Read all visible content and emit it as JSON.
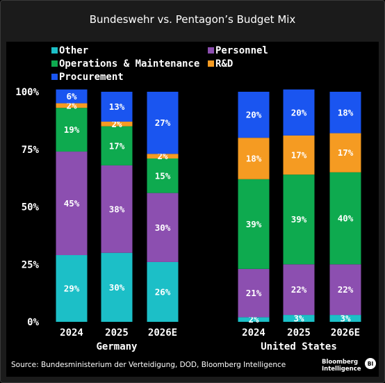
{
  "title": "Bundeswehr vs. Pentagon’s Budget Mix",
  "source": "Source: Bundesministerium der Verteidigung, DOD, Bloomberg Intelligence",
  "logo": {
    "line1": "Bloomberg",
    "line2": "Intelligence",
    "badge": "BI"
  },
  "colors": {
    "Other": "#1cbfc7",
    "Personnel": "#8c4fb0",
    "Operations & Maintenance": "#0eaa4f",
    "R&D": "#f59b22",
    "Procurement": "#1a55f0"
  },
  "chart_data": {
    "type": "bar",
    "stacked": true,
    "ylim": [
      0,
      100
    ],
    "yticks": [
      "0%",
      "25%",
      "50%",
      "75%",
      "100%"
    ],
    "legend": [
      "Other",
      "Personnel",
      "Operations & Maintenance",
      "R&D",
      "Procurement"
    ],
    "groups": [
      {
        "name": "Germany",
        "categories": [
          "2024",
          "2025",
          "2026E"
        ]
      },
      {
        "name": "United States",
        "categories": [
          "2024",
          "2025",
          "2026E"
        ]
      }
    ],
    "categories": [
      "2024",
      "2025",
      "2026E",
      "2024",
      "2025",
      "2026E"
    ],
    "series": [
      {
        "name": "Other",
        "values": [
          29,
          30,
          26,
          2,
          3,
          3
        ]
      },
      {
        "name": "Personnel",
        "values": [
          45,
          38,
          30,
          21,
          22,
          22
        ]
      },
      {
        "name": "Operations & Maintenance",
        "values": [
          19,
          17,
          15,
          39,
          39,
          40
        ]
      },
      {
        "name": "R&D",
        "values": [
          2,
          2,
          2,
          18,
          17,
          17
        ]
      },
      {
        "name": "Procurement",
        "values": [
          6,
          13,
          27,
          20,
          20,
          18
        ]
      }
    ]
  }
}
